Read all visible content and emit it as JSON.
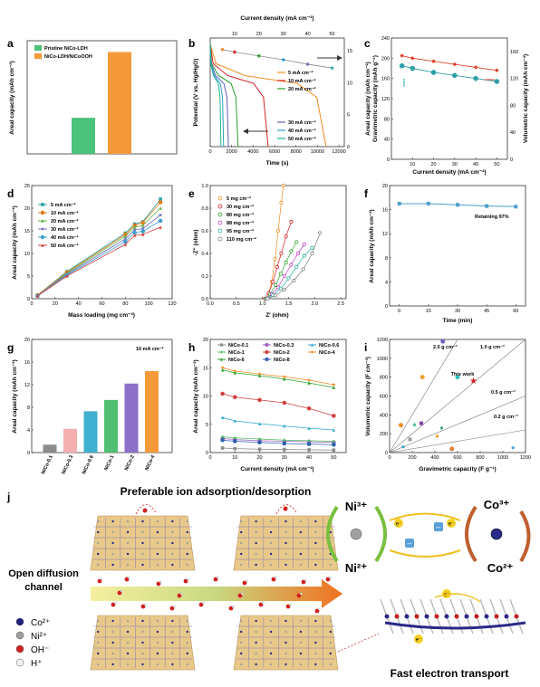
{
  "panels": {
    "a": {
      "label": "a",
      "chart_data": {
        "type": "bar",
        "categories": [
          "Pristine NiCo-LDH",
          "NiCo-LDH/NiCoOOH"
        ],
        "values": [
          5.1,
          14.4
        ],
        "colors": [
          "#4cc27a",
          "#f59a3a"
        ],
        "ylabel": "Areal capacity (mAh cm⁻²)",
        "legend": [
          "Pristine NiCo-LDH",
          "NiCo-LDH/NiCoOOH"
        ],
        "legend_placement": "top-left"
      }
    },
    "b": {
      "label": "b",
      "chart_data": {
        "type": "line",
        "xlabel": "Time (s)",
        "ylabel": "Potential (V vs. Hg/HgO)",
        "x2label": "Current density (mA cm⁻²)",
        "y2label": "",
        "xticks": [
          "0",
          "2000",
          "4000",
          "6000",
          "8000",
          "10000",
          "12000"
        ],
        "x2ticks": [
          "10",
          "20",
          "30",
          "40",
          "50"
        ],
        "y2ticks": [
          "0",
          "5",
          "10",
          "15"
        ],
        "xlim": [
          0,
          12500
        ],
        "ylim": [
          0,
          0.55
        ],
        "series": [
          {
            "name": "5 mA cm⁻²",
            "color": "#f08c1e",
            "end_time": 10800
          },
          {
            "name": "10 mA cm⁻²",
            "color": "#d62020",
            "end_time": 5400
          },
          {
            "name": "20 mA cm⁻²",
            "color": "#2ca02c",
            "end_time": 2600
          },
          {
            "name": "30 mA cm⁻²",
            "color": "#6060c0",
            "end_time": 1700
          },
          {
            "name": "40 mA cm⁻²",
            "color": "#2aa0c8",
            "end_time": 1250
          },
          {
            "name": "50 mA cm⁻²",
            "color": "#20b0a0",
            "end_time": 1000
          }
        ],
        "top_series": {
          "x": [
            5,
            10,
            20,
            30,
            40,
            50
          ],
          "y": [
            15.2,
            14.8,
            14.2,
            13.6,
            12.9,
            12.3
          ],
          "color": "#555"
        }
      }
    },
    "c": {
      "label": "c",
      "chart_data": {
        "type": "line",
        "xlabel": "Current density (mA cm⁻²)",
        "ylabel": "Areal capacity (mAh cm⁻²)\nGravimetric capacity (mAh g⁻¹)",
        "y2label": "Volumetric capacity (mAh cm⁻³)",
        "xticks": [
          "10",
          "20",
          "30",
          "40",
          "50"
        ],
        "yticks": [
          "0",
          "40",
          "80",
          "120",
          "160",
          "200",
          "240"
        ],
        "y2ticks": [
          "0",
          "40",
          "80",
          "120",
          "160"
        ],
        "xlim": [
          0,
          55
        ],
        "ylim": [
          0,
          240
        ],
        "series": [
          {
            "name": "Gravimetric",
            "color": "#e0402a",
            "x": [
              5,
              10,
              20,
              30,
              40,
              50
            ],
            "y": [
              205,
              200,
              194,
              188,
              182,
              176
            ]
          },
          {
            "name": "Volumetric",
            "color": "#30a0a8",
            "x": [
              5,
              10,
              20,
              30,
              40,
              50
            ],
            "y": [
              185,
              180,
              172,
              166,
              160,
              154
            ]
          }
        ]
      }
    },
    "d": {
      "label": "d",
      "chart_data": {
        "type": "line",
        "xlabel": "Mass loading (mg cm⁻²)",
        "ylabel": "Areal capacity (mAh cm⁻²)",
        "xticks": [
          "0",
          "20",
          "40",
          "60",
          "80",
          "100",
          "120"
        ],
        "yticks": [
          "0",
          "5",
          "10",
          "15",
          "20",
          "25"
        ],
        "xlim": [
          0,
          120
        ],
        "ylim": [
          0,
          25
        ],
        "x": [
          5,
          30,
          80,
          88,
          95,
          110
        ],
        "series": [
          {
            "name": "5 mA cm⁻²",
            "color": "#2aa0a0",
            "values": [
              0.8,
              6.0,
              14.5,
              16.5,
              17.0,
              22.0
            ]
          },
          {
            "name": "10 mA cm⁻²",
            "color": "#e08020",
            "values": [
              0.8,
              5.8,
              14.2,
              16.2,
              16.8,
              21.3
            ]
          },
          {
            "name": "20 mA cm⁻²",
            "color": "#60b040",
            "values": [
              0.7,
              5.6,
              13.8,
              15.8,
              16.2,
              20.0
            ]
          },
          {
            "name": "30 mA cm⁻²",
            "color": "#7070c0",
            "values": [
              0.7,
              5.4,
              13.2,
              15.2,
              15.5,
              18.5
            ]
          },
          {
            "name": "40 mA cm⁻²",
            "color": "#40a0d0",
            "values": [
              0.6,
              5.2,
              12.6,
              14.6,
              14.9,
              17.2
            ]
          },
          {
            "name": "50 mA cm⁻²",
            "color": "#d04040",
            "values": [
              0.6,
              5.0,
              12.0,
              14.0,
              14.2,
              15.8
            ]
          }
        ]
      }
    },
    "e": {
      "label": "e",
      "chart_data": {
        "type": "scatter",
        "xlabel": "Z' (ohm)",
        "ylabel": "-Z\" (ohm)",
        "xticks": [
          "0.0",
          "0.5",
          "1.0",
          "1.5",
          "2.0",
          "2.5"
        ],
        "yticks": [
          "0.0",
          "0.2",
          "0.4",
          "0.6",
          "0.8",
          "1.0"
        ],
        "xlim": [
          0,
          2.6
        ],
        "ylim": [
          0,
          1.0
        ],
        "series": [
          {
            "name": "5 mg cm⁻²",
            "color": "#f08c1e",
            "x": [
              1.05,
              1.12,
              1.18,
              1.24,
              1.3,
              1.36,
              1.4
            ],
            "y": [
              0.0,
              0.05,
              0.15,
              0.35,
              0.6,
              0.85,
              1.0
            ]
          },
          {
            "name": "30 mg cm⁻²",
            "color": "#d62020",
            "x": [
              1.05,
              1.12,
              1.2,
              1.28,
              1.36,
              1.45,
              1.55
            ],
            "y": [
              0.0,
              0.05,
              0.15,
              0.28,
              0.4,
              0.55,
              0.68
            ]
          },
          {
            "name": "80 mg cm⁻²",
            "color": "#2ca02c",
            "x": [
              1.07,
              1.15,
              1.25,
              1.35,
              1.45,
              1.55,
              1.65
            ],
            "y": [
              0.0,
              0.04,
              0.12,
              0.22,
              0.32,
              0.42,
              0.5
            ]
          },
          {
            "name": "88 mg cm⁻²",
            "color": "#c040c0",
            "x": [
              1.08,
              1.18,
              1.3,
              1.42,
              1.55,
              1.68,
              1.8
            ],
            "y": [
              0.0,
              0.04,
              0.1,
              0.2,
              0.3,
              0.4,
              0.48
            ]
          },
          {
            "name": "95 mg cm⁻²",
            "color": "#30b0a0",
            "x": [
              1.08,
              1.2,
              1.35,
              1.5,
              1.65,
              1.8,
              1.95
            ],
            "y": [
              0.0,
              0.03,
              0.09,
              0.18,
              0.28,
              0.38,
              0.45
            ]
          },
          {
            "name": "110 mg cm⁻²",
            "color": "#808080",
            "x": [
              1.1,
              1.25,
              1.42,
              1.6,
              1.78,
              1.95,
              2.1
            ],
            "y": [
              0.0,
              0.03,
              0.08,
              0.16,
              0.26,
              0.4,
              0.58
            ]
          }
        ]
      }
    },
    "f": {
      "label": "f",
      "annotation": "Retaining 97%",
      "chart_data": {
        "type": "line",
        "xlabel": "Time (min)",
        "ylabel": "Areal capacity (mAh cm⁻²)",
        "xticks": [
          "0",
          "15",
          "30",
          "45",
          "60"
        ],
        "yticks": [
          "0",
          "4",
          "8",
          "12",
          "16",
          "20"
        ],
        "xlim": [
          -5,
          65
        ],
        "ylim": [
          0,
          20
        ],
        "x": [
          0,
          15,
          30,
          45,
          60
        ],
        "values": [
          17.0,
          17.0,
          16.8,
          16.6,
          16.5
        ],
        "color": "#4aa0c8"
      }
    },
    "g": {
      "label": "g",
      "annotation": "10 mA cm⁻²",
      "chart_data": {
        "type": "bar",
        "categories": [
          "NiCo-0.1",
          "NiCo-0.3",
          "NiCo-0.6",
          "NiCo-1",
          "NiCo-2",
          "NiCo-4"
        ],
        "values": [
          1.4,
          4.2,
          7.3,
          9.3,
          12.2,
          14.4
        ],
        "colors": [
          "#8c8c8c",
          "#f4b0b0",
          "#40b0d0",
          "#50c070",
          "#8c70c8",
          "#f59a3a"
        ],
        "ylabel": "Areal capacity (mAh cm⁻²)",
        "yticks": [
          "0",
          "4",
          "8",
          "12",
          "16",
          "20"
        ],
        "ylim": [
          0,
          20
        ]
      }
    },
    "h": {
      "label": "h",
      "chart_data": {
        "type": "line",
        "xlabel": "Current density (mA cm⁻²)",
        "ylabel": "Areal capacity (mAh cm⁻²)",
        "xticks": [
          "0",
          "10",
          "20",
          "30",
          "40",
          "50"
        ],
        "yticks": [
          "0",
          "5",
          "10",
          "15",
          "20"
        ],
        "xlim": [
          0,
          55
        ],
        "ylim": [
          0,
          20
        ],
        "x": [
          5,
          10,
          20,
          30,
          40,
          50
        ],
        "series": [
          {
            "name": "NiCo-0.1",
            "color": "#8c8c8c",
            "values": [
              0.8,
              0.7,
              0.6,
              0.55,
              0.5,
              0.45
            ]
          },
          {
            "name": "NiCo-0.3",
            "color": "#a060c0",
            "values": [
              2.5,
              2.3,
              2.1,
              2.0,
              1.9,
              1.8
            ]
          },
          {
            "name": "NiCo-0.6",
            "color": "#30a8d0",
            "values": [
              6.2,
              5.6,
              5.1,
              4.7,
              4.3,
              4.0
            ]
          },
          {
            "name": "NiCo-1",
            "color": "#4cbf60",
            "values": [
              2.8,
              2.6,
              2.4,
              2.2,
              2.1,
              2.0
            ]
          },
          {
            "name": "NiCo-2",
            "color": "#d04040",
            "values": [
              10.4,
              9.8,
              9.3,
              8.8,
              7.8,
              6.5
            ]
          },
          {
            "name": "NiCo-4",
            "color": "#f08c1e",
            "values": [
              15.0,
              14.4,
              13.9,
              13.4,
              12.8,
              12.0
            ]
          },
          {
            "name": "NiCo-6",
            "color": "#2ca02c",
            "values": [
              14.6,
              14.1,
              13.6,
              13.0,
              12.3,
              11.5
            ]
          },
          {
            "name": "NiCo-8",
            "color": "#3060b0",
            "values": [
              2.2,
              2.0,
              1.8,
              1.6,
              1.5,
              1.4
            ]
          }
        ]
      }
    },
    "i": {
      "label": "i",
      "chart_data": {
        "type": "scatter",
        "xlabel": "Gravimetric capacity (F g⁻¹)",
        "ylabel": "Volumetric capacity (F cm⁻³)",
        "xticks": [
          "0",
          "200",
          "400",
          "600",
          "800",
          "1000",
          "1200"
        ],
        "yticks": [
          "0",
          "200",
          "400",
          "600",
          "800",
          "1000",
          "1200"
        ],
        "xlim": [
          0,
          1200
        ],
        "ylim": [
          0,
          1200
        ],
        "density_lines": [
          "2.0 g cm⁻³",
          "1.0 g cm⁻³",
          "0.5 g cm⁻³",
          "0.2 g cm⁻³"
        ],
        "density_values": [
          2.0,
          1.0,
          0.5,
          0.2
        ],
        "this_work_label": "This work",
        "this_work": {
          "x": 740,
          "y": 760,
          "color": "#d62020"
        },
        "points": [
          {
            "x": 100,
            "y": 290,
            "color": "#f08c1e"
          },
          {
            "x": 120,
            "y": 60,
            "color": "#2aa0c8"
          },
          {
            "x": 220,
            "y": 300,
            "color": "#30b080"
          },
          {
            "x": 280,
            "y": 310,
            "color": "#8040a0"
          },
          {
            "x": 290,
            "y": 800,
            "color": "#f0a030"
          },
          {
            "x": 470,
            "y": 1180,
            "color": "#7060c0"
          },
          {
            "x": 460,
            "y": 260,
            "color": "#2aa070"
          },
          {
            "x": 600,
            "y": 800,
            "color": "#30c0c0"
          },
          {
            "x": 420,
            "y": 180,
            "color": "#f08c1e"
          },
          {
            "x": 550,
            "y": 40,
            "color": "#e08040"
          },
          {
            "x": 1090,
            "y": 50,
            "color": "#40a0e0"
          },
          {
            "x": 180,
            "y": 140,
            "color": "#a0a0a0"
          }
        ]
      }
    },
    "j": {
      "label": "j",
      "title": "Preferable ion adsorption/desorption",
      "left_label": "Open diffusion channel",
      "bottom_label": "Fast electron transport",
      "legend": [
        {
          "symbol": "Co²⁺",
          "color": "#202080"
        },
        {
          "symbol": "Ni²⁺",
          "color": "#a0a0a0"
        },
        {
          "symbol": "OH⁻",
          "color": "#d02020"
        },
        {
          "symbol": "H⁺",
          "color": "#f0f0f0"
        }
      ],
      "cycle_ni": {
        "top": "Ni³⁺",
        "bottom": "Ni²⁺"
      },
      "cycle_co": {
        "top": "Co³⁺",
        "bottom": "Co²⁺"
      },
      "electron": "e⁻",
      "minus": "–"
    }
  }
}
